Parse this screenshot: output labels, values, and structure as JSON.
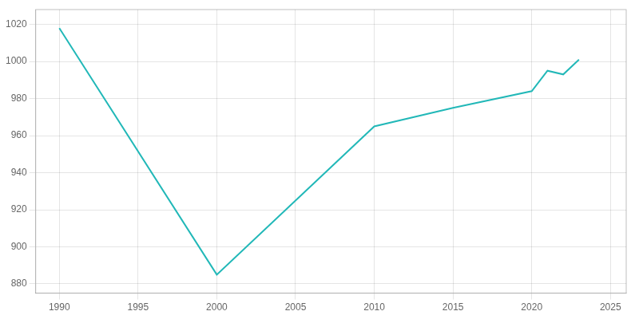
{
  "chart_data": {
    "type": "line",
    "x": [
      1990,
      2000,
      2010,
      2015,
      2020,
      2021,
      2022,
      2023
    ],
    "values": [
      1018,
      885,
      965,
      975,
      984,
      995,
      993,
      1001
    ],
    "color": "#22b8b8",
    "xlim": [
      1988.5,
      2026
    ],
    "xticks": [
      1990,
      1995,
      2000,
      2005,
      2010,
      2015,
      2020,
      2025
    ],
    "ylim": [
      875,
      1028
    ],
    "yticks": [
      880,
      900,
      920,
      940,
      960,
      980,
      1000,
      1020
    ],
    "grid": true
  }
}
